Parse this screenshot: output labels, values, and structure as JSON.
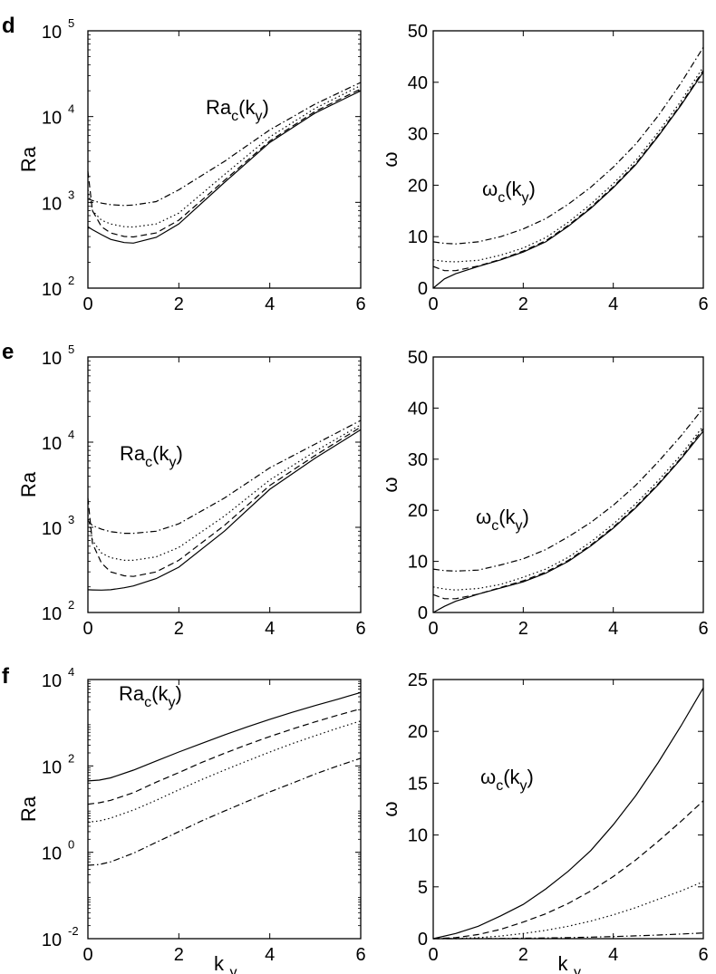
{
  "chart_data": [
    {
      "panel": "d",
      "type": "line",
      "scale": "log",
      "ylabel": "Ra",
      "xlabel": "",
      "xlim": [
        0,
        6
      ],
      "ylim_exp": [
        2,
        5
      ],
      "xticks": [
        "0",
        "2",
        "4",
        "6"
      ],
      "ytick_exps": [
        "2",
        "3",
        "4",
        "5"
      ],
      "annotation": {
        "main": "Ra",
        "sub": "c",
        "open": "(k",
        "subvar": "y",
        "close": ")"
      },
      "x": [
        0,
        0.1,
        0.3,
        0.5,
        0.8,
        1,
        1.5,
        2,
        3,
        4,
        5,
        6
      ],
      "series": [
        {
          "style": "solid",
          "values": [
            520,
            480,
            420,
            370,
            340,
            335,
            390,
            560,
            1700,
            5000,
            11000,
            20000
          ]
        },
        {
          "style": "dashed",
          "values": [
            2300,
            800,
            520,
            440,
            400,
            395,
            440,
            620,
            1800,
            5200,
            11500,
            21000
          ]
        },
        {
          "style": "dotted",
          "values": [
            1400,
            800,
            620,
            560,
            520,
            515,
            560,
            750,
            2100,
            5800,
            12500,
            23000
          ]
        },
        {
          "style": "dashdot",
          "values": [
            1100,
            1050,
            980,
            940,
            920,
            930,
            1020,
            1400,
            3000,
            7000,
            14000,
            25000
          ]
        }
      ]
    },
    {
      "panel": "d",
      "type": "line",
      "scale": "linear",
      "ylabel": "ω",
      "xlabel": "",
      "xlim": [
        0,
        6
      ],
      "ylim": [
        0,
        50
      ],
      "xticks": [
        "0",
        "2",
        "4",
        "6"
      ],
      "yticks": [
        "0",
        "10",
        "20",
        "30",
        "40",
        "50"
      ],
      "annotation": {
        "main": "ω",
        "sub": "c",
        "open": "(k",
        "subvar": "y",
        "close": ")"
      },
      "x": [
        0,
        0.25,
        0.5,
        1,
        1.5,
        2,
        2.5,
        3,
        3.5,
        4,
        4.5,
        5,
        5.5,
        6
      ],
      "series": [
        {
          "style": "solid",
          "values": [
            0,
            1.8,
            2.8,
            4.2,
            5.5,
            7,
            9,
            12,
            15.5,
            19.5,
            24,
            29.5,
            35.5,
            42
          ]
        },
        {
          "style": "dashed",
          "values": [
            4.2,
            3.4,
            3.4,
            4.3,
            5.6,
            7.2,
            9.2,
            12.2,
            15.7,
            19.7,
            24.2,
            29.7,
            35.7,
            42.3
          ]
        },
        {
          "style": "dotted",
          "values": [
            5.5,
            5.2,
            5.1,
            5.4,
            6.4,
            7.8,
            9.8,
            12.8,
            16.3,
            20.3,
            24.8,
            30.3,
            36.3,
            43
          ]
        },
        {
          "style": "dashdot",
          "values": [
            9,
            8.7,
            8.6,
            9,
            10,
            11.5,
            13.5,
            16.3,
            19.6,
            23.5,
            28,
            33.5,
            39.8,
            46.8
          ]
        }
      ]
    },
    {
      "panel": "e",
      "type": "line",
      "scale": "log",
      "ylabel": "Ra",
      "xlabel": "",
      "xlim": [
        0,
        6
      ],
      "ylim_exp": [
        2,
        5
      ],
      "xticks": [
        "0",
        "2",
        "4",
        "6"
      ],
      "ytick_exps": [
        "2",
        "3",
        "4",
        "5"
      ],
      "annotation": {
        "main": "Ra",
        "sub": "c",
        "open": "(k",
        "subvar": "y",
        "close": ")"
      },
      "x": [
        0,
        0.1,
        0.3,
        0.5,
        0.8,
        1,
        1.5,
        2,
        3,
        4,
        5,
        6
      ],
      "series": [
        {
          "style": "solid",
          "values": [
            185,
            184,
            183,
            185,
            195,
            205,
            250,
            340,
            900,
            2800,
            6500,
            14000
          ]
        },
        {
          "style": "dashed",
          "values": [
            2200,
            650,
            380,
            300,
            270,
            265,
            300,
            410,
            1050,
            3100,
            7000,
            15000
          ]
        },
        {
          "style": "dotted",
          "values": [
            1400,
            700,
            500,
            440,
            410,
            410,
            450,
            580,
            1350,
            3600,
            7800,
            16000
          ]
        },
        {
          "style": "dashdot",
          "values": [
            1200,
            1050,
            950,
            890,
            850,
            850,
            900,
            1100,
            2200,
            5000,
            9500,
            18000
          ]
        }
      ]
    },
    {
      "panel": "e",
      "type": "line",
      "scale": "linear",
      "ylabel": "ω",
      "xlabel": "",
      "xlim": [
        0,
        6
      ],
      "ylim": [
        0,
        50
      ],
      "xticks": [
        "0",
        "2",
        "4",
        "6"
      ],
      "yticks": [
        "0",
        "10",
        "20",
        "30",
        "40",
        "50"
      ],
      "annotation": {
        "main": "ω",
        "sub": "c",
        "open": "(k",
        "subvar": "y",
        "close": ")"
      },
      "x": [
        0,
        0.25,
        0.5,
        1,
        1.5,
        2,
        2.5,
        3,
        3.5,
        4,
        4.5,
        5,
        5.5,
        6
      ],
      "series": [
        {
          "style": "solid",
          "values": [
            0,
            1.2,
            2.2,
            3.6,
            4.8,
            6,
            7.7,
            10,
            13,
            16.5,
            20.5,
            25,
            30,
            35.5
          ]
        },
        {
          "style": "dashed",
          "values": [
            3.5,
            2.7,
            2.7,
            3.6,
            4.9,
            6.2,
            7.9,
            10.2,
            13.2,
            16.7,
            20.7,
            25.2,
            30.2,
            36
          ]
        },
        {
          "style": "dotted",
          "values": [
            5,
            4.6,
            4.4,
            4.7,
            5.5,
            6.9,
            8.5,
            10.8,
            13.8,
            17.3,
            21.3,
            25.8,
            30.8,
            36.5
          ]
        },
        {
          "style": "dashdot",
          "values": [
            8.5,
            8.2,
            8.1,
            8.3,
            9.3,
            10.5,
            12.3,
            14.8,
            17.6,
            21,
            24.9,
            29.5,
            34.5,
            40
          ]
        }
      ]
    },
    {
      "panel": "f",
      "type": "line",
      "scale": "log",
      "ylabel": "Ra",
      "xlabel": "k",
      "xlabel_sub": "y",
      "xlim": [
        0,
        6
      ],
      "ylim_exp": [
        -2,
        4
      ],
      "xticks": [
        "0",
        "2",
        "4",
        "6"
      ],
      "ytick_exps": [
        "-2",
        "0",
        "2",
        "4"
      ],
      "annotation": {
        "main": "Ra",
        "sub": "c",
        "open": "(k",
        "subvar": "y",
        "close": ")"
      },
      "x": [
        0,
        0.25,
        0.5,
        1,
        1.5,
        2,
        2.5,
        3,
        3.5,
        4,
        4.5,
        5,
        5.5,
        6
      ],
      "series": [
        {
          "style": "solid",
          "values": [
            45,
            47,
            53,
            80,
            130,
            210,
            330,
            520,
            800,
            1200,
            1750,
            2500,
            3500,
            5000
          ]
        },
        {
          "style": "dashed",
          "values": [
            13,
            14,
            16,
            24,
            42,
            70,
            120,
            195,
            310,
            480,
            720,
            1050,
            1500,
            2100
          ]
        },
        {
          "style": "dotted",
          "values": [
            5,
            5.3,
            6.2,
            9.5,
            16,
            28,
            48,
            80,
            130,
            210,
            330,
            500,
            750,
            1100
          ]
        },
        {
          "style": "dashdot",
          "values": [
            0.5,
            0.52,
            0.6,
            0.95,
            1.7,
            3,
            5.3,
            9,
            15,
            25,
            40,
            65,
            100,
            150
          ]
        }
      ]
    },
    {
      "panel": "f",
      "type": "line",
      "scale": "linear",
      "ylabel": "ω",
      "xlabel": "k",
      "xlabel_sub": "y",
      "xlim": [
        0,
        6
      ],
      "ylim": [
        0,
        25
      ],
      "xticks": [
        "0",
        "2",
        "4",
        "6"
      ],
      "yticks": [
        "0",
        "5",
        "10",
        "15",
        "20",
        "25"
      ],
      "annotation": {
        "main": "ω",
        "sub": "c",
        "open": "(k",
        "subvar": "y",
        "close": ")"
      },
      "x": [
        0,
        0.5,
        1,
        1.5,
        2,
        2.5,
        3,
        3.5,
        4,
        4.5,
        5,
        5.5,
        6
      ],
      "series": [
        {
          "style": "solid",
          "values": [
            0,
            0.5,
            1.2,
            2.2,
            3.3,
            4.8,
            6.5,
            8.5,
            11,
            13.8,
            17,
            20.5,
            24.2
          ]
        },
        {
          "style": "dashed",
          "values": [
            0,
            0.1,
            0.4,
            0.9,
            1.6,
            2.4,
            3.4,
            4.6,
            6,
            7.6,
            9.4,
            11.3,
            13.3
          ]
        },
        {
          "style": "dotted",
          "values": [
            0,
            0.02,
            0.1,
            0.25,
            0.5,
            0.8,
            1.2,
            1.7,
            2.3,
            3,
            3.8,
            4.6,
            5.5
          ]
        },
        {
          "style": "dashdot",
          "values": [
            0,
            0,
            0.01,
            0.02,
            0.04,
            0.07,
            0.1,
            0.15,
            0.2,
            0.27,
            0.35,
            0.45,
            0.55
          ]
        }
      ]
    }
  ]
}
